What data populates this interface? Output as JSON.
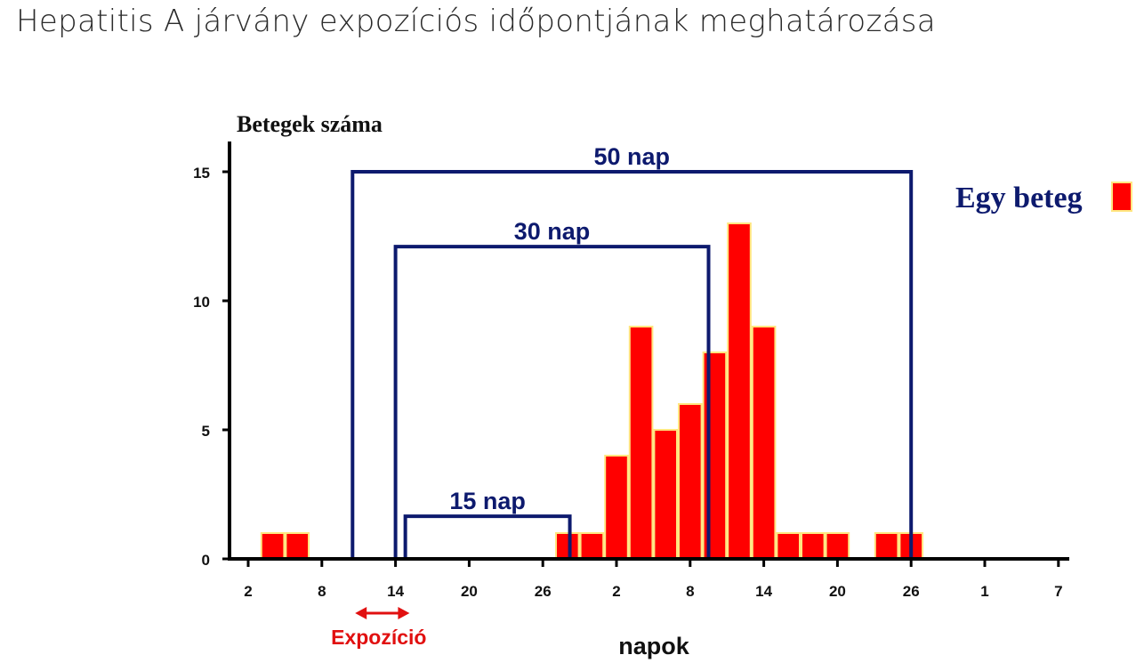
{
  "title": "Hepatitis A járvány expozíciós időpontjának meghatározása",
  "colors": {
    "bar": "#ff0000",
    "bar_edge": "#ffe680",
    "bracket": "#0d1a6e",
    "axis": "#000000",
    "exposure": "#e11010"
  },
  "chart_data": {
    "type": "bar",
    "ylabel": "Betegek száma",
    "xlabel": "napok",
    "ylim": [
      0,
      15
    ],
    "yticks": [
      0,
      5,
      10,
      15
    ],
    "xticks": [
      {
        "day": 0,
        "label": "2"
      },
      {
        "day": 6,
        "label": "8"
      },
      {
        "day": 12,
        "label": "14"
      },
      {
        "day": 18,
        "label": "20"
      },
      {
        "day": 24,
        "label": "26"
      },
      {
        "day": 30,
        "label": "2"
      },
      {
        "day": 36,
        "label": "8"
      },
      {
        "day": 42,
        "label": "14"
      },
      {
        "day": 48,
        "label": "20"
      },
      {
        "day": 54,
        "label": "26"
      },
      {
        "day": 60,
        "label": "1"
      },
      {
        "day": 66,
        "label": "7"
      }
    ],
    "bars": [
      {
        "start": 1,
        "count": 1
      },
      {
        "start": 3,
        "count": 1
      },
      {
        "start": 25,
        "count": 1
      },
      {
        "start": 27,
        "count": 1
      },
      {
        "start": 29,
        "count": 4
      },
      {
        "start": 31,
        "count": 9
      },
      {
        "start": 33,
        "count": 5
      },
      {
        "start": 35,
        "count": 6
      },
      {
        "start": 37,
        "count": 8
      },
      {
        "start": 39,
        "count": 13
      },
      {
        "start": 41,
        "count": 9
      },
      {
        "start": 43,
        "count": 1
      },
      {
        "start": 45,
        "count": 1
      },
      {
        "start": 47,
        "count": 1
      },
      {
        "start": 51,
        "count": 1
      },
      {
        "start": 53,
        "count": 1
      }
    ],
    "bar_width_days": 2,
    "intervals": [
      {
        "label": "50 nap",
        "start": 8.5,
        "end": 54,
        "level": 15
      },
      {
        "label": "30 nap",
        "start": 12,
        "end": 37.5,
        "level": 12.1
      },
      {
        "label": "15 nap",
        "start": 12.8,
        "end": 26.2,
        "level": 1.65
      }
    ],
    "legend": "Egy beteg",
    "exposure": {
      "label": "Expozíció",
      "start": 9,
      "end": 13
    }
  }
}
